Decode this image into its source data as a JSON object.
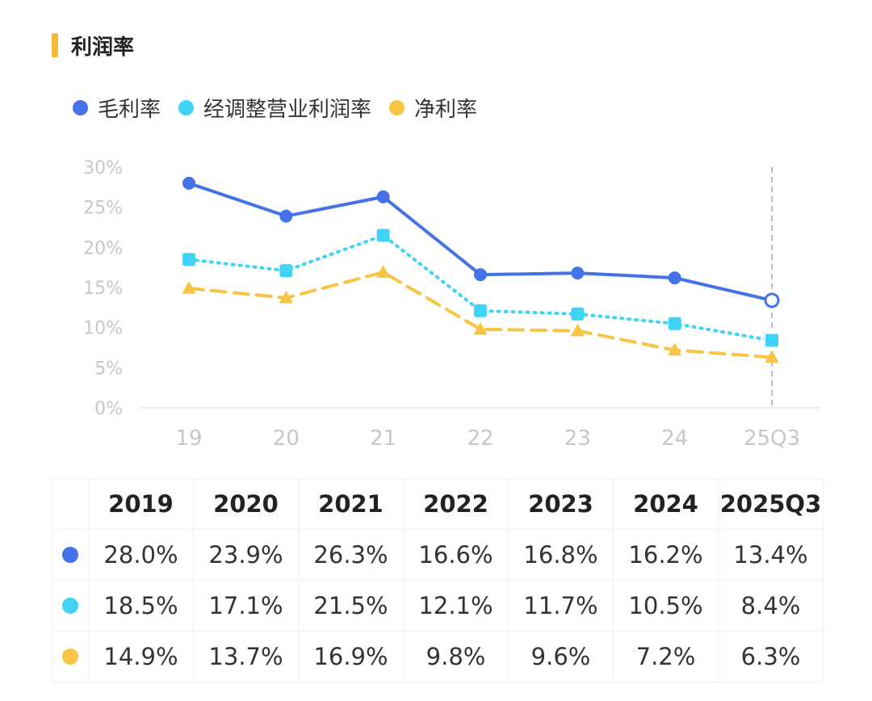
{
  "header": {
    "title": "利润率"
  },
  "legend": [
    {
      "label": "毛利率",
      "color": "#4472e8"
    },
    {
      "label": "经调整营业利润率",
      "color": "#3fd3f5"
    },
    {
      "label": "净利率",
      "color": "#f7c543"
    }
  ],
  "chart_data": {
    "type": "line",
    "categories": [
      "19",
      "20",
      "21",
      "22",
      "23",
      "24",
      "25Q3"
    ],
    "series": [
      {
        "name": "毛利率",
        "values": [
          28.0,
          23.9,
          26.3,
          16.6,
          16.8,
          16.2,
          13.4
        ],
        "color": "#4472e8",
        "line_style": "solid",
        "marker": "circle"
      },
      {
        "name": "经调整营业利润率",
        "values": [
          18.5,
          17.1,
          21.5,
          12.1,
          11.7,
          10.5,
          8.4
        ],
        "color": "#3fd3f5",
        "line_style": "dotted",
        "marker": "square"
      },
      {
        "name": "净利率",
        "values": [
          14.9,
          13.7,
          16.9,
          9.8,
          9.6,
          7.2,
          6.3
        ],
        "color": "#f7c543",
        "line_style": "dashed",
        "marker": "triangle"
      }
    ],
    "y_ticks": [
      "0%",
      "5%",
      "10%",
      "15%",
      "20%",
      "25%",
      "30%"
    ],
    "ylim": [
      0,
      30
    ],
    "grid": false,
    "legend_position": "top-left",
    "highlight_last_point": true
  },
  "table": {
    "headers": [
      "2019",
      "2020",
      "2021",
      "2022",
      "2023",
      "2024",
      "2025Q3"
    ],
    "rows": [
      {
        "color": "#4472e8",
        "values": [
          "28.0%",
          "23.9%",
          "26.3%",
          "16.6%",
          "16.8%",
          "16.2%",
          "13.4%"
        ]
      },
      {
        "color": "#3fd3f5",
        "values": [
          "18.5%",
          "17.1%",
          "21.5%",
          "12.1%",
          "11.7%",
          "10.5%",
          "8.4%"
        ]
      },
      {
        "color": "#f7c543",
        "values": [
          "14.9%",
          "13.7%",
          "16.9%",
          "9.8%",
          "9.6%",
          "7.2%",
          "6.3%"
        ]
      }
    ]
  }
}
